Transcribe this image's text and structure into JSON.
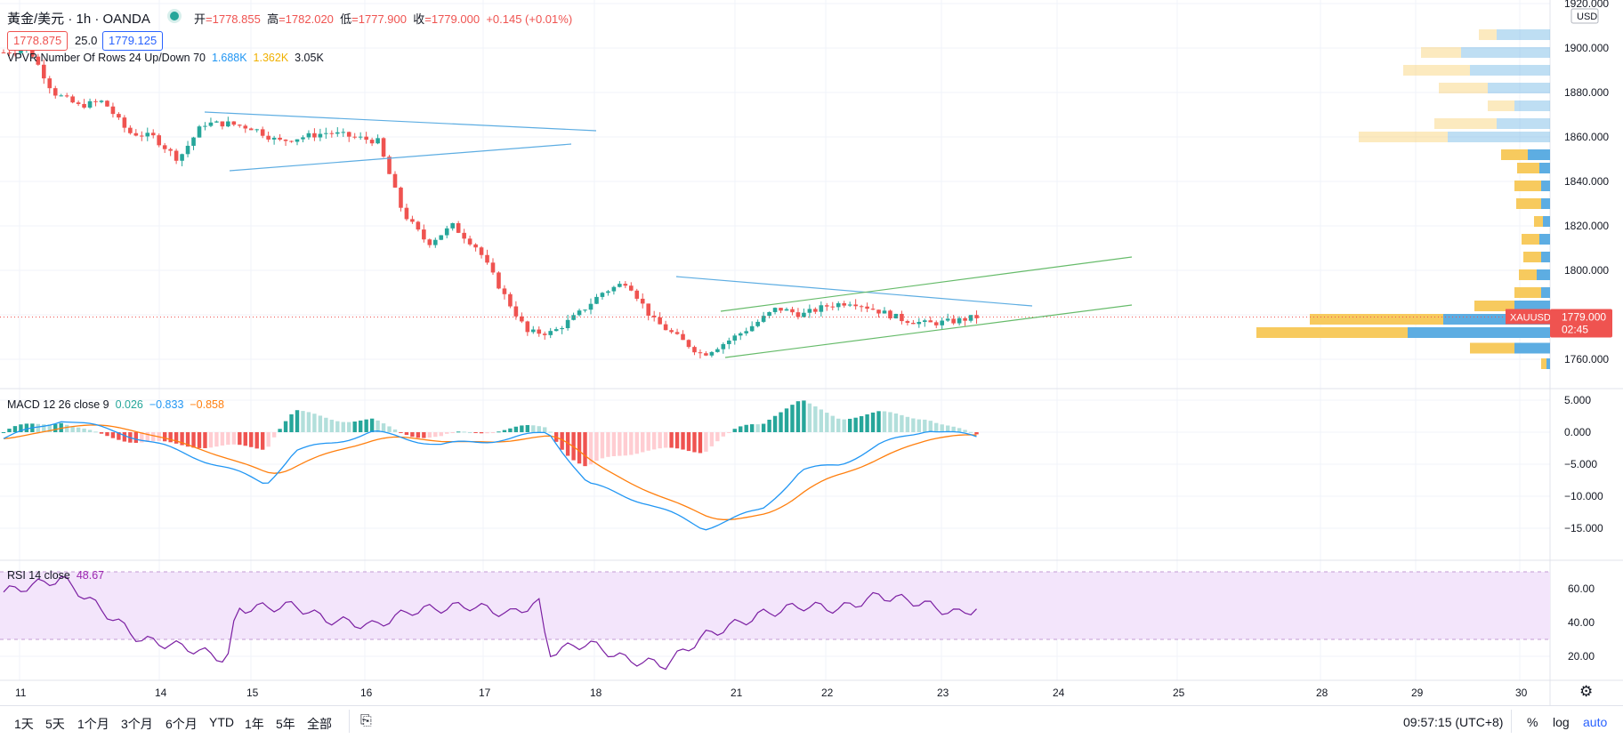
{
  "header": {
    "symbol_title": "黃金/美元 · 1h · OANDA",
    "ohlc": [
      {
        "label": "开",
        "value": "=1778.855"
      },
      {
        "label": "高",
        "value": "=1782.020"
      },
      {
        "label": "低",
        "value": "=1777.900"
      },
      {
        "label": "收",
        "value": "=1779.000"
      }
    ],
    "change": "+0.145 (+0.01%)",
    "bid": "1778.875",
    "spread": "25.0",
    "ask": "1779.125"
  },
  "indicators": {
    "vpvr_label": "VPVR Number Of Rows 24 Up/Down 70",
    "vpvr_up": "1.688K",
    "vpvr_down": "1.362K",
    "vpvr_total": "3.05K",
    "macd_label": "MACD 12 26 close 9",
    "macd_hist": "0.026",
    "macd_line": "−0.833",
    "macd_signal": "−0.858",
    "rsi_label": "RSI 14 close",
    "rsi_value": "48.67"
  },
  "price_axis": {
    "currency": "USD",
    "ticks": [
      "1920.000",
      "1900.000",
      "1880.000",
      "1860.000",
      "1840.000",
      "1820.000",
      "1800.000",
      "1760.000"
    ],
    "symbol_tag": "XAUUSD",
    "last_price": "1779.000",
    "countdown": "02:45"
  },
  "macd_axis": {
    "ticks": [
      "5.000",
      "0.000",
      "−5.000",
      "−10.000",
      "−15.000"
    ]
  },
  "rsi_axis": {
    "ticks": [
      "60.00",
      "40.00",
      "20.00"
    ]
  },
  "time_axis": {
    "labels": [
      "11",
      "14",
      "15",
      "16",
      "17",
      "18",
      "21",
      "22",
      "23",
      "24",
      "25",
      "28",
      "29",
      "30"
    ]
  },
  "bottom_bar": {
    "ranges": [
      "1天",
      "5天",
      "1个月",
      "3个月",
      "6个月",
      "YTD",
      "1年",
      "5年",
      "全部"
    ],
    "compare_icon": "calendar-goto-icon",
    "clock": "09:57:15 (UTC+8)",
    "percent": "%",
    "log": "log",
    "auto": "auto"
  },
  "colors": {
    "up": "#26a69a",
    "down": "#ef5350",
    "macd_line": "#2196f3",
    "signal_line": "#ff7f0e",
    "rsi_line": "#7b1fa2",
    "rsi_band": "#f3e5fb",
    "vp_up": "#5dade2",
    "vp_down": "#f7ca5e",
    "wedge_line": "#5dade2",
    "channel_line": "#66bb6a",
    "accent": "#2962ff"
  },
  "chart_data": {
    "type": "candlestick",
    "x": [
      "11",
      "14",
      "15",
      "16",
      "17",
      "18",
      "21",
      "22",
      "23"
    ],
    "ylim": [
      1755,
      1925
    ],
    "grid": true,
    "close_path": [
      1898,
      1900,
      1880,
      1874,
      1876,
      1862,
      1860,
      1850,
      1866,
      1866,
      1864,
      1858,
      1860,
      1862,
      1860,
      1858,
      1826,
      1812,
      1820,
      1810,
      1790,
      1772,
      1772,
      1780,
      1790,
      1795,
      1778,
      1770,
      1762,
      1768,
      1775,
      1783,
      1780,
      1784,
      1786,
      1782,
      1778,
      1776,
      1777,
      1779
    ],
    "last": 1779.0
  }
}
